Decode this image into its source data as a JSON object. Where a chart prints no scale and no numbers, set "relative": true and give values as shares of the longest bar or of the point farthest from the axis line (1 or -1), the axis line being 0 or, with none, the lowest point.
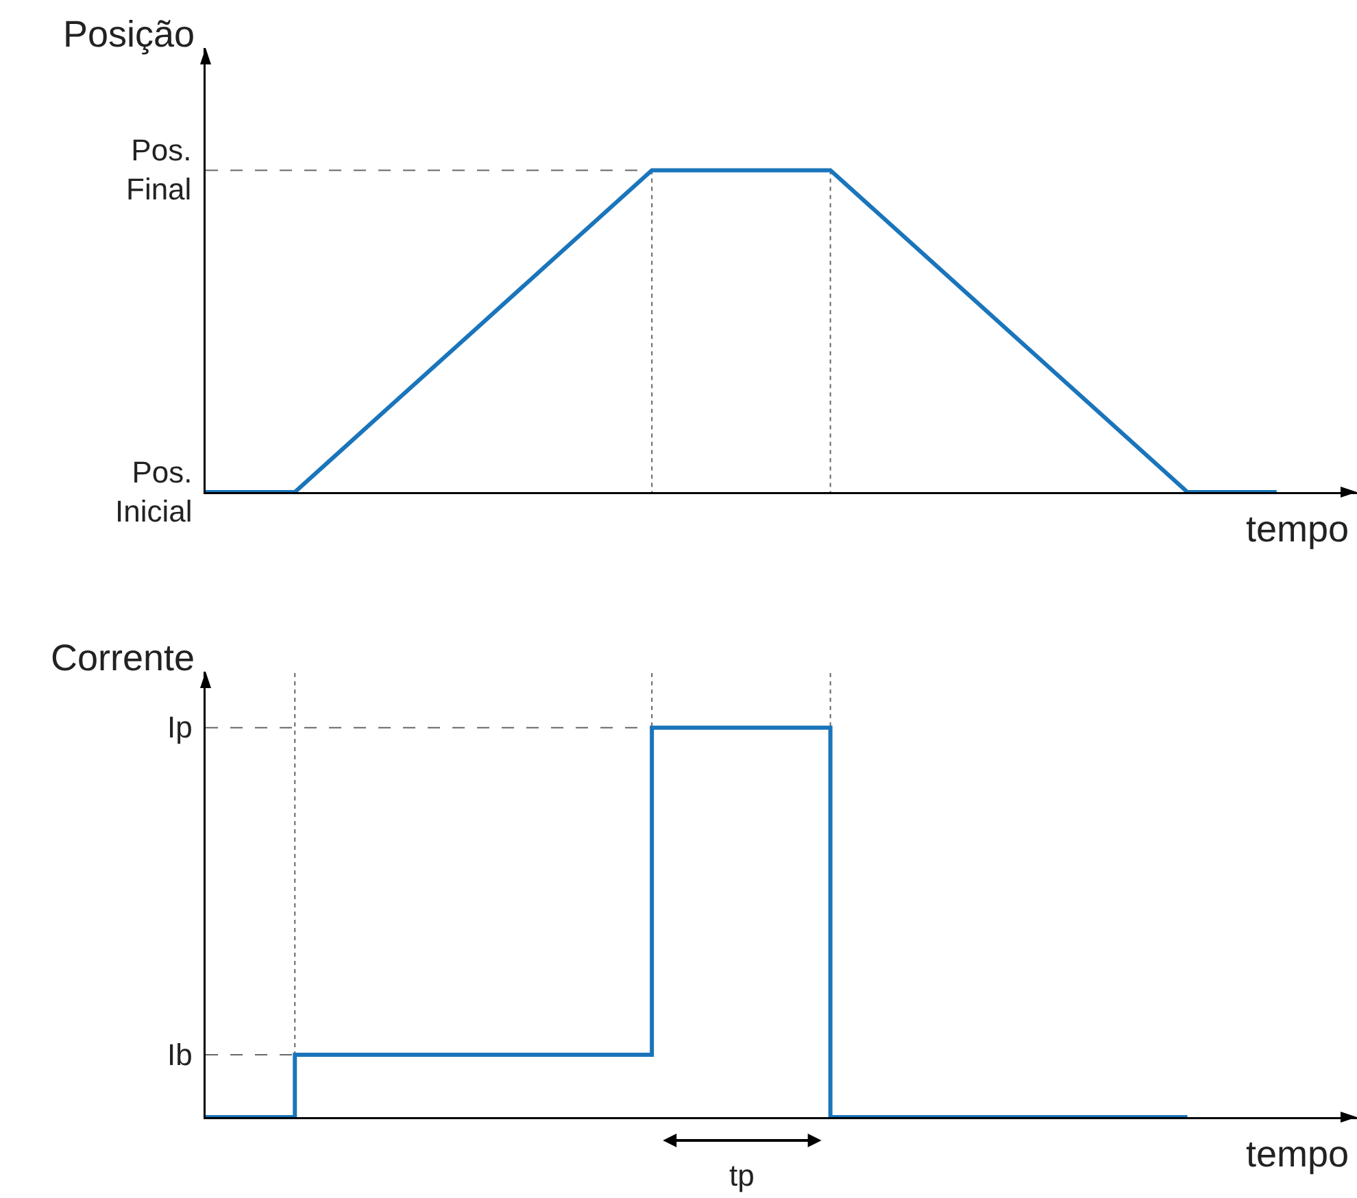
{
  "chart_data": [
    {
      "type": "line",
      "ylabel": "Posição",
      "xlabel": "tempo",
      "relative": true,
      "categories": [
        null,
        null,
        null,
        null,
        null,
        null,
        null,
        null,
        null,
        null,
        null,
        null,
        null
      ],
      "series": [
        {
          "color": "#1a75bb",
          "values": [
            0,
            0,
            0.25,
            0.5,
            0.75,
            1,
            1,
            1,
            0.75,
            0.5,
            0.25,
            0,
            0
          ]
        }
      ],
      "grid": false,
      "legend": false,
      "marker": "none",
      "line_style": "solid",
      "ref_lines": [
        {
          "axis": "y",
          "value": 0,
          "label": "Pos. Inicial"
        },
        {
          "axis": "y",
          "value": 1,
          "label": "Pos. Final",
          "color": "#666666",
          "line_style": "dashed"
        }
      ]
    },
    {
      "type": "step",
      "ylabel": "Corrente",
      "xlabel": "tempo",
      "relative": true,
      "categories": [
        null,
        null,
        null,
        null,
        null,
        null,
        null,
        null,
        null,
        null,
        null,
        null,
        null
      ],
      "series": [
        {
          "color": "#1a75bb",
          "values": [
            0,
            0.16,
            0.16,
            0.16,
            0.16,
            1,
            1,
            0,
            0,
            0,
            0,
            0,
            null
          ]
        }
      ],
      "grid": false,
      "legend": false,
      "marker": "none",
      "line_style": "solid",
      "annotations": [
        "tp"
      ],
      "ref_lines": [
        {
          "axis": "y",
          "value": 0.16,
          "label": "Ib",
          "color": "#666666",
          "line_style": "dashed"
        },
        {
          "axis": "y",
          "value": 1,
          "label": "Ip",
          "color": "#666666",
          "line_style": "dashed"
        }
      ]
    }
  ]
}
